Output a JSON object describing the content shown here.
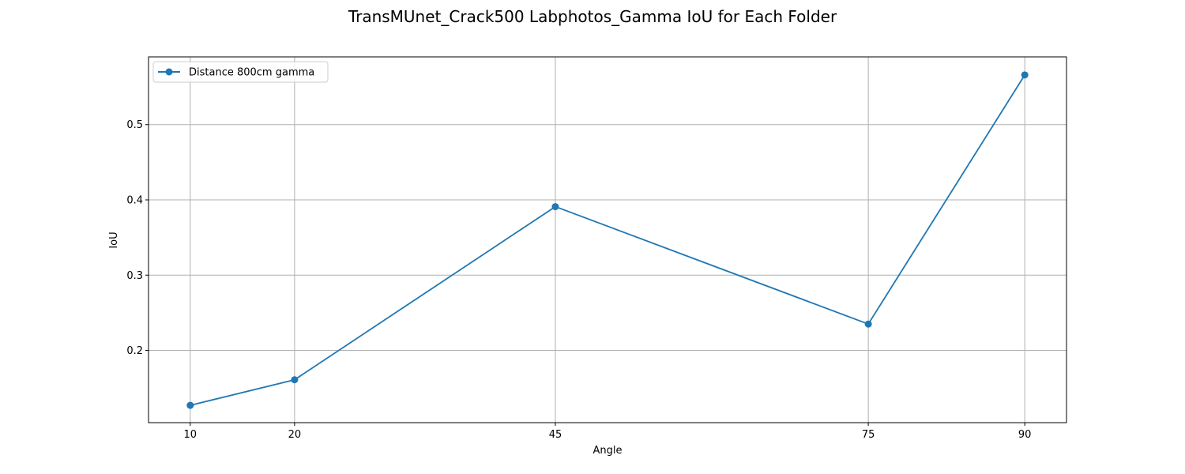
{
  "chart_data": {
    "type": "line",
    "title": "TransMUnet_Crack500 Labphotos_Gamma IoU for Each Folder",
    "xlabel": "Angle",
    "ylabel": "IoU",
    "x": [
      10,
      20,
      45,
      75,
      90
    ],
    "xticks": [
      "10",
      "20",
      "45",
      "75",
      "90"
    ],
    "yticks": [
      0.2,
      0.3,
      0.4,
      0.5
    ],
    "xlim": [
      6.0,
      94.0
    ],
    "ylim": [
      0.104,
      0.59
    ],
    "grid": true,
    "legend_position": "upper-left",
    "series": [
      {
        "name": "Distance 800cm gamma",
        "color": "#1f77b4",
        "values": [
          0.127,
          0.161,
          0.391,
          0.235,
          0.566
        ]
      }
    ]
  }
}
